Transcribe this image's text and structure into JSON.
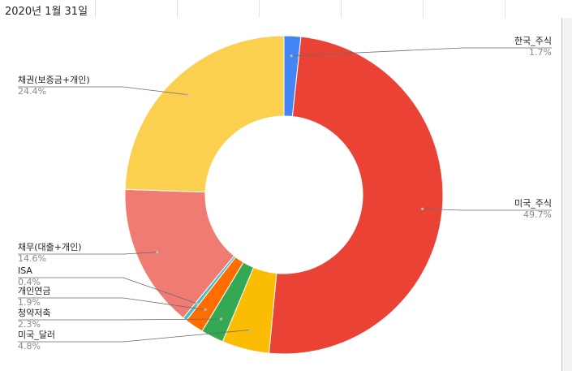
{
  "sheet": {
    "cell_text": "2020년 1월 31일"
  },
  "chart_data": {
    "type": "pie",
    "donut": true,
    "title": "",
    "slices": [
      {
        "label": "한국_주식",
        "value": 1.7,
        "display": "1.7%",
        "color": "#4285f4"
      },
      {
        "label": "미국_주식",
        "value": 49.7,
        "display": "49.7%",
        "color": "#ea4335"
      },
      {
        "label": "미국_달러",
        "value": 4.8,
        "display": "4.8%",
        "color": "#fbbc04"
      },
      {
        "label": "청약저축",
        "value": 2.3,
        "display": "2.3%",
        "color": "#34a853"
      },
      {
        "label": "개인연금",
        "value": 1.9,
        "display": "1.9%",
        "color": "#ff6d01"
      },
      {
        "label": "ISA",
        "value": 0.4,
        "display": "0.4%",
        "color": "#46bdc6"
      },
      {
        "label": "채무(대출+개인)",
        "value": 14.6,
        "display": "14.6%",
        "color": "#f07b72"
      },
      {
        "label": "채권(보증금+개인)",
        "value": 24.4,
        "display": "24.4%",
        "color": "#fcd04f"
      }
    ]
  }
}
